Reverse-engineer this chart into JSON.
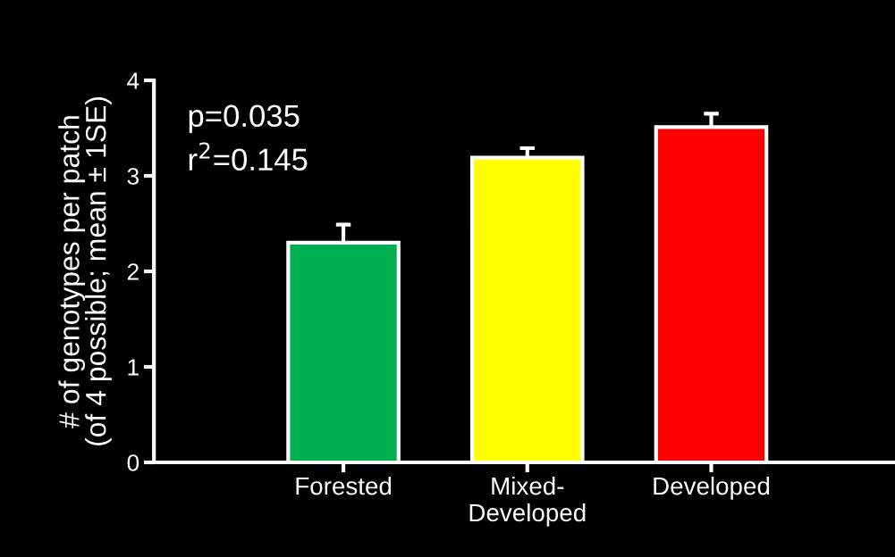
{
  "chart_data": {
    "type": "bar",
    "ylabel": "# of genotypes per patch\n(of 4 possible; mean ± 1SE)",
    "categories": [
      "Forested",
      "Mixed-\nDeveloped",
      "Developed"
    ],
    "values": [
      2.3,
      3.19,
      3.51
    ],
    "colors": [
      "#00b050",
      "#ffff00",
      "#ff0000"
    ],
    "errors": [
      [
        2.3,
        2.49
      ],
      [
        3.19,
        3.29
      ],
      [
        3.51,
        3.65
      ]
    ],
    "ylim": [
      0,
      4
    ],
    "yticks": [
      0,
      1,
      2,
      3,
      4
    ],
    "grid": false,
    "annotations": [
      "p=0.035",
      "r$^{2}$=0.145"
    ]
  }
}
